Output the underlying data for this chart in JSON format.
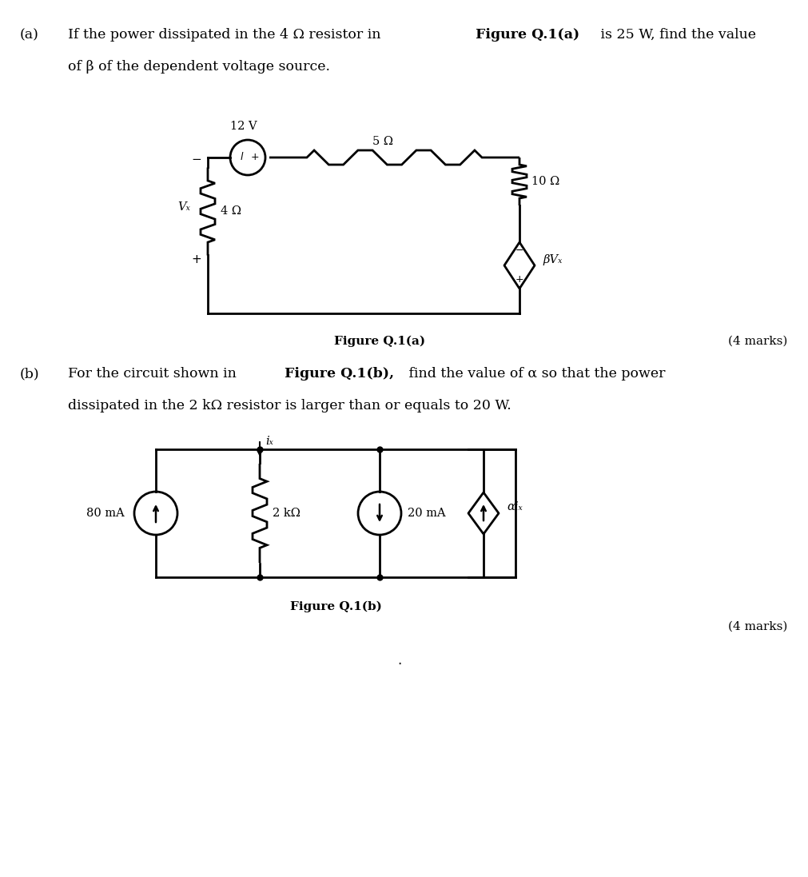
{
  "bg_color": "#ffffff",
  "line_color": "#000000",
  "fig_width": 10.11,
  "fig_height": 10.97,
  "dpi": 100,
  "font_size_text": 12.5,
  "font_size_label": 11,
  "font_size_component": 10.5,
  "lw": 2.0,
  "part_a_caption": "Figure Q.1(a)",
  "part_b_caption": "Figure Q.1(b)",
  "marks": "(4 marks)"
}
